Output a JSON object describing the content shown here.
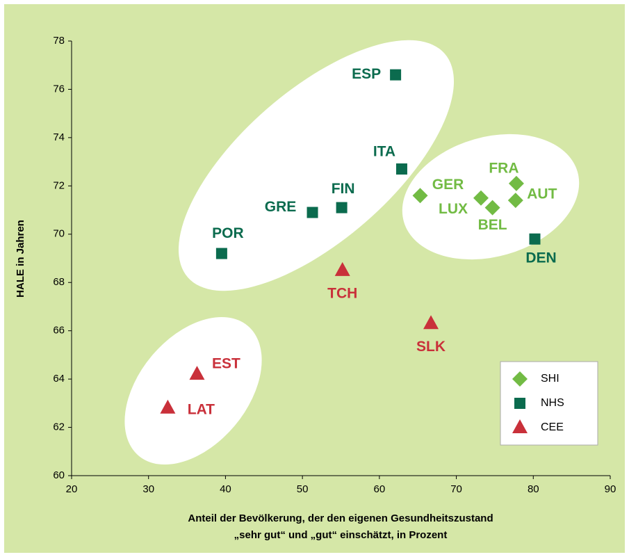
{
  "chart_data": {
    "type": "scatter",
    "x_label": [
      "Anteil der Bevölkerung, der den eigenen Gesundheitszustand",
      "„sehr gut“ und „gut“ einschätzt, in Prozent"
    ],
    "y_label": "HALE in Jahren",
    "xlim": [
      20,
      90
    ],
    "xticks": [
      20,
      30,
      40,
      50,
      60,
      70,
      80,
      90
    ],
    "ylim": [
      60,
      78
    ],
    "yticks": [
      60,
      62,
      64,
      66,
      68,
      70,
      72,
      74,
      76,
      78
    ],
    "grid": false,
    "legend": "lower right",
    "series": [
      {
        "name": "SHI",
        "color": "#72bb44",
        "marker": "diamond",
        "labels": [
          "GER",
          "LUX",
          "BEL",
          "FRA",
          "AUT"
        ],
        "x": [
          65.3,
          73.2,
          74.7,
          77.8,
          77.7
        ],
        "values": [
          71.6,
          71.5,
          71.1,
          72.1,
          71.4
        ]
      },
      {
        "name": "NHS",
        "color": "#0b6b4e",
        "marker": "square",
        "labels": [
          "ESP",
          "ITA",
          "FIN",
          "GRE",
          "POR",
          "DEN"
        ],
        "x": [
          62.1,
          62.9,
          55.1,
          51.3,
          39.5,
          80.2
        ],
        "values": [
          76.6,
          72.7,
          71.1,
          70.9,
          69.2,
          69.8
        ]
      },
      {
        "name": "CEE",
        "color": "#c9303a",
        "marker": "triangle",
        "labels": [
          "TCH",
          "SLK",
          "EST",
          "LAT"
        ],
        "x": [
          55.2,
          66.7,
          36.3,
          32.5
        ],
        "values": [
          68.5,
          66.3,
          64.2,
          62.8
        ]
      }
    ]
  }
}
